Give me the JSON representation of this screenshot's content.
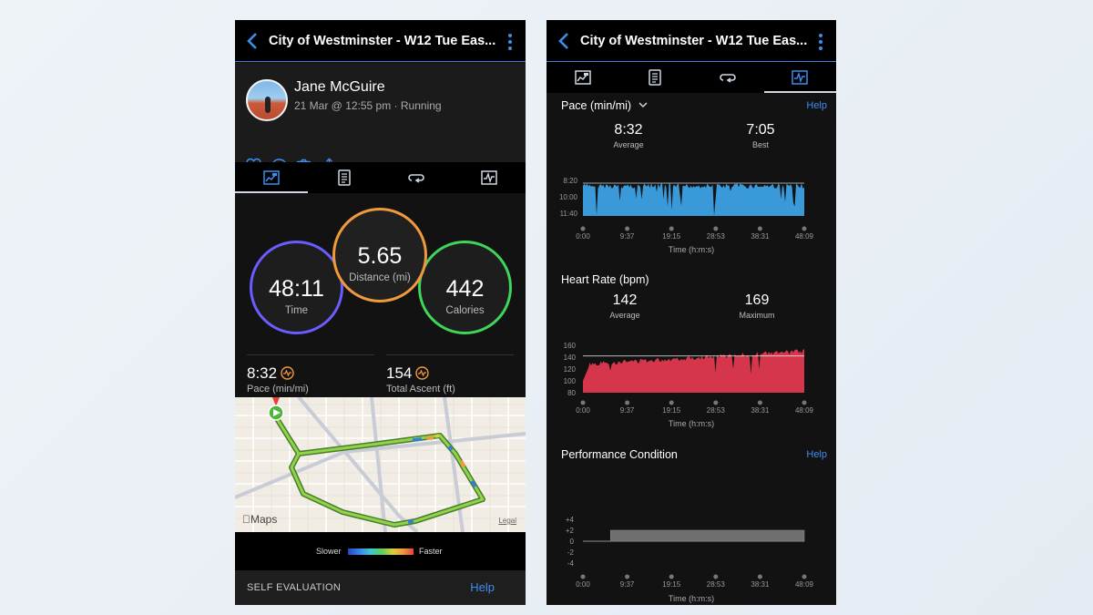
{
  "left": {
    "header": {
      "title": "City of Westminster - W12 Tue Eas..."
    },
    "profile": {
      "name": "Jane McGuire",
      "subtitle": "21 Mar @ 12:55 pm · Running"
    },
    "actions": [
      "heart-icon",
      "comment-icon",
      "camera-icon",
      "share-icon"
    ],
    "tabs": [
      "summary-icon",
      "details-icon",
      "laps-icon",
      "charts-icon"
    ],
    "active_tab": 0,
    "stats": {
      "time": {
        "value": "48:11",
        "label": "Time"
      },
      "distance": {
        "value": "5.65",
        "label": "Distance (mi)"
      },
      "calories": {
        "value": "442",
        "label": "Calories"
      },
      "pace": {
        "value": "8:32",
        "label": "Pace (min/mi)"
      },
      "ascent": {
        "value": "154",
        "label": "Total Ascent (ft)"
      }
    },
    "map": {
      "provider": "Maps",
      "legal": "Legal"
    },
    "legend": {
      "slower": "Slower",
      "faster": "Faster"
    },
    "self_evaluation": {
      "label": "SELF EVALUATION",
      "help": "Help"
    },
    "colors": {
      "time_ring": "#6a5cff",
      "distance_ring": "#f09a3e",
      "calories_ring": "#3fd45a",
      "accent": "#3c8ef0"
    }
  },
  "right": {
    "header": {
      "title": "City of Westminster - W12 Tue Eas..."
    },
    "tabs": [
      "summary-icon",
      "details-icon",
      "laps-icon",
      "charts-icon"
    ],
    "active_tab": 3,
    "pace": {
      "title": "Pace (min/mi)",
      "help": "Help",
      "average": {
        "value": "8:32",
        "label": "Average"
      },
      "best": {
        "value": "7:05",
        "label": "Best"
      }
    },
    "heart_rate": {
      "title": "Heart Rate (bpm)",
      "average": {
        "value": "142",
        "label": "Average"
      },
      "maximum": {
        "value": "169",
        "label": "Maximum"
      }
    },
    "performance": {
      "title": "Performance Condition",
      "help": "Help"
    }
  },
  "chart_data": [
    {
      "type": "area",
      "title": "Pace (min/mi)",
      "xlabel": "Time (h:m:s)",
      "x_ticks": [
        "0:00",
        "9:37",
        "19:15",
        "28:53",
        "38:31",
        "48:09"
      ],
      "y_ticks": [
        "8:20",
        "10:00",
        "11:40"
      ],
      "y_inverted": true,
      "average_line": "8:32",
      "color": "#3a9ad9"
    },
    {
      "type": "area",
      "title": "Heart Rate (bpm)",
      "xlabel": "Time (h:m:s)",
      "x_ticks": [
        "0:00",
        "9:37",
        "19:15",
        "28:53",
        "38:31",
        "48:09"
      ],
      "y_ticks": [
        "160",
        "140",
        "120",
        "100",
        "80"
      ],
      "ylim": [
        80,
        160
      ],
      "average_line": 142,
      "color": "#d6364c"
    },
    {
      "type": "bar",
      "title": "Performance Condition",
      "xlabel": "Time (h:m:s)",
      "x_ticks": [
        "0:00",
        "9:37",
        "19:15",
        "28:53",
        "38:31",
        "48:09"
      ],
      "y_ticks": [
        "+4",
        "+2",
        "0",
        "-2",
        "-4"
      ],
      "ylim": [
        -4,
        4
      ],
      "segment": {
        "x_start": "6:00",
        "x_end": "48:09",
        "value": 2
      },
      "color": "#6f6f6f"
    }
  ]
}
